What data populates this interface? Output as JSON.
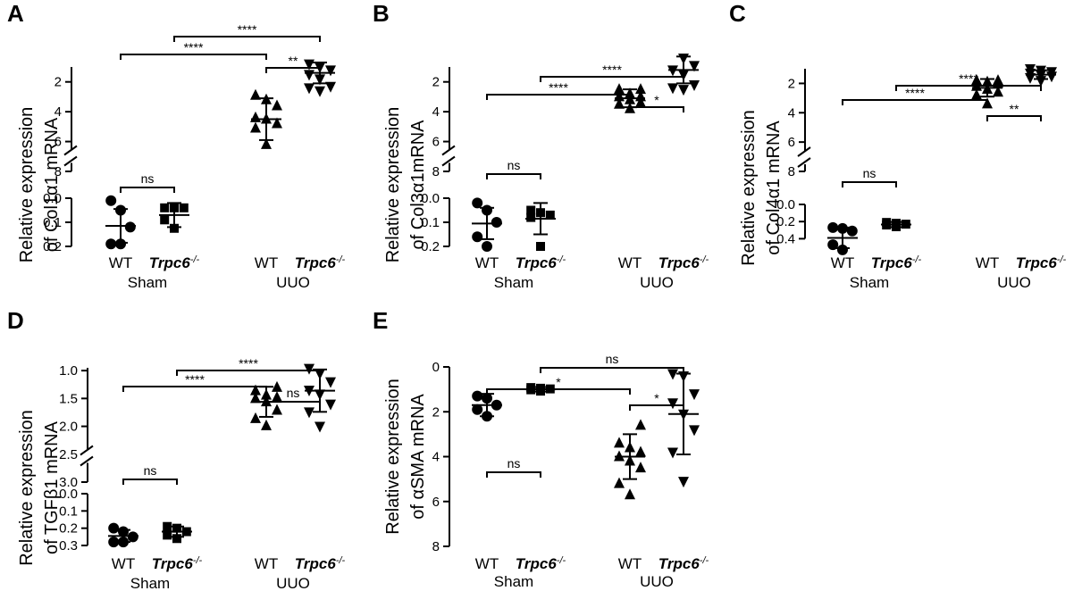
{
  "chart_data": [
    {
      "type": "scatter",
      "panel_label": "A",
      "ylabel_line1": "Relative expression",
      "ylabel_line2": "of Col1α1 mRNA",
      "y_segments": [
        {
          "range": [
            0,
            0.2
          ],
          "ticks": [
            0.0,
            0.1,
            0.2
          ],
          "tick_labels": [
            "0.0",
            "0.1",
            "0.2"
          ]
        },
        {
          "range": [
            1,
            8
          ],
          "ticks": [
            2,
            4,
            6,
            8
          ],
          "tick_labels": [
            "2",
            "4",
            "6",
            "8"
          ]
        }
      ],
      "group_labels": [
        "Sham",
        "UUO"
      ],
      "categories": [
        {
          "label": "WT",
          "label_sup": "",
          "italic": false,
          "marker": "circle",
          "mean": 0.115,
          "sd": 0.07,
          "values": [
            0.19,
            0.19,
            0.12,
            0.05,
            0.01
          ]
        },
        {
          "label": "Trpc6",
          "label_sup": "-/-",
          "italic": true,
          "marker": "square",
          "mean": 0.07,
          "sd": 0.05,
          "values": [
            0.125,
            0.09,
            0.04,
            0.04,
            0.04
          ]
        },
        {
          "label": "WT",
          "label_sup": "",
          "italic": false,
          "marker": "triangle-up",
          "mean": 4.5,
          "sd": 1.4,
          "values": [
            6.2,
            5.1,
            4.8,
            4.5,
            4.4,
            3.6,
            3.2,
            2.9
          ]
        },
        {
          "label": "Trpc6",
          "label_sup": "-/-",
          "italic": true,
          "marker": "triangle-down",
          "mean": 1.4,
          "sd": 0.7,
          "values": [
            2.6,
            2.4,
            2.3,
            1.8,
            1.5,
            1.2,
            1.0,
            0.8
          ]
        }
      ],
      "comparisons": [
        {
          "from": 0,
          "to": 1,
          "label": "ns"
        },
        {
          "from": 2,
          "to": 3,
          "label": "**"
        },
        {
          "from": 0,
          "to": 2,
          "label": "****"
        },
        {
          "from": 1,
          "to": 3,
          "label": "****"
        }
      ]
    },
    {
      "type": "scatter",
      "panel_label": "B",
      "ylabel_line1": "Relative expression",
      "ylabel_line2": "of Col3α1mRNA",
      "y_segments": [
        {
          "range": [
            0,
            0.2
          ],
          "ticks": [
            0.0,
            0.1,
            0.2
          ],
          "tick_labels": [
            "0.0",
            "0.1",
            "0.2"
          ]
        },
        {
          "range": [
            1,
            8
          ],
          "ticks": [
            2,
            4,
            6,
            8
          ],
          "tick_labels": [
            "2",
            "4",
            "6",
            "8"
          ]
        }
      ],
      "group_labels": [
        "Sham",
        "UUO"
      ],
      "categories": [
        {
          "label": "WT",
          "label_sup": "",
          "italic": false,
          "marker": "circle",
          "mean": 0.105,
          "sd": 0.065,
          "values": [
            0.2,
            0.16,
            0.1,
            0.05,
            0.02
          ]
        },
        {
          "label": "Trpc6",
          "label_sup": "-/-",
          "italic": true,
          "marker": "square",
          "mean": 0.085,
          "sd": 0.065,
          "values": [
            0.2,
            0.08,
            0.07,
            0.06,
            0.05
          ]
        },
        {
          "label": "WT",
          "label_sup": "",
          "italic": false,
          "marker": "triangle-up",
          "mean": 3.1,
          "sd": 0.6,
          "values": [
            3.8,
            3.5,
            3.4,
            3.2,
            3.0,
            3.0,
            2.8,
            2.5,
            2.5
          ]
        },
        {
          "label": "Trpc6",
          "label_sup": "-/-",
          "italic": true,
          "marker": "triangle-down",
          "mean": 1.2,
          "sd": 0.9,
          "values": [
            2.5,
            2.4,
            2.2,
            1.5,
            1.2,
            0.9,
            0.4
          ]
        }
      ],
      "comparisons": [
        {
          "from": 0,
          "to": 1,
          "label": "ns"
        },
        {
          "from": 2,
          "to": 3,
          "label": "*"
        },
        {
          "from": 0,
          "to": 2,
          "label": "****"
        },
        {
          "from": 1,
          "to": 3,
          "label": "****"
        }
      ]
    },
    {
      "type": "scatter",
      "panel_label": "C",
      "ylabel_line1": "Relative expression",
      "ylabel_line2": "of Col4α1 mRNA",
      "y_segments": [
        {
          "range": [
            0,
            0.5
          ],
          "ticks": [
            0.0,
            0.2,
            0.4
          ],
          "tick_labels": [
            "0.0",
            "0.2",
            "0.4"
          ]
        },
        {
          "range": [
            1,
            8
          ],
          "ticks": [
            2,
            4,
            6,
            8
          ],
          "tick_labels": [
            "2",
            "4",
            "6",
            "8"
          ]
        }
      ],
      "group_labels": [
        "Sham",
        "UUO"
      ],
      "categories": [
        {
          "label": "WT",
          "label_sup": "",
          "italic": false,
          "marker": "circle",
          "mean": 0.39,
          "sd": 0.12,
          "values": [
            0.53,
            0.47,
            0.31,
            0.28,
            0.27
          ]
        },
        {
          "label": "Trpc6",
          "label_sup": "-/-",
          "italic": true,
          "marker": "square",
          "mean": 0.235,
          "sd": 0.03,
          "values": [
            0.26,
            0.24,
            0.23,
            0.22,
            0.21
          ]
        },
        {
          "label": "WT",
          "label_sup": "",
          "italic": false,
          "marker": "triangle-up",
          "mean": 2.3,
          "sd": 0.6,
          "values": [
            3.4,
            2.8,
            2.6,
            2.4,
            2.2,
            2.0,
            1.9,
            1.8,
            1.8
          ]
        },
        {
          "label": "Trpc6",
          "label_sup": "-/-",
          "italic": true,
          "marker": "triangle-down",
          "mean": 1.4,
          "sd": 0.3,
          "values": [
            1.8,
            1.6,
            1.5,
            1.4,
            1.3,
            1.2,
            1.1,
            1.0
          ]
        }
      ],
      "comparisons": [
        {
          "from": 0,
          "to": 1,
          "label": "ns"
        },
        {
          "from": 2,
          "to": 3,
          "label": "**"
        },
        {
          "from": 0,
          "to": 2,
          "label": "****"
        },
        {
          "from": 1,
          "to": 3,
          "label": "****"
        }
      ]
    },
    {
      "type": "scatter",
      "panel_label": "D",
      "ylabel_line1": "Relative expression",
      "ylabel_line2": "of TGFβ1 mRNA",
      "y_segments": [
        {
          "range": [
            0,
            0.3
          ],
          "ticks": [
            0.0,
            0.1,
            0.2,
            0.3
          ],
          "tick_labels": [
            "0.0",
            "0.1",
            "0.2",
            "0.3"
          ]
        },
        {
          "range": [
            0.95,
            3.0
          ],
          "ticks": [
            1.0,
            1.5,
            2.0,
            2.5,
            3.0
          ],
          "tick_labels": [
            "1.0",
            "1.5",
            "2.0",
            "2.5",
            "3.0"
          ]
        }
      ],
      "group_labels": [
        "Sham",
        "UUO"
      ],
      "categories": [
        {
          "label": "WT",
          "label_sup": "",
          "italic": false,
          "marker": "circle",
          "mean": 0.245,
          "sd": 0.035,
          "values": [
            0.28,
            0.28,
            0.25,
            0.22,
            0.2
          ]
        },
        {
          "label": "Trpc6",
          "label_sup": "-/-",
          "italic": true,
          "marker": "square",
          "mean": 0.22,
          "sd": 0.03,
          "values": [
            0.26,
            0.24,
            0.22,
            0.2,
            0.19
          ]
        },
        {
          "label": "WT",
          "label_sup": "",
          "italic": false,
          "marker": "triangle-up",
          "mean": 1.56,
          "sd": 0.27,
          "values": [
            1.99,
            1.86,
            1.71,
            1.56,
            1.5,
            1.48,
            1.44,
            1.36,
            1.3
          ]
        },
        {
          "label": "Trpc6",
          "label_sup": "-/-",
          "italic": true,
          "marker": "triangle-down",
          "mean": 1.36,
          "sd": 0.38,
          "values": [
            2.0,
            1.74,
            1.6,
            1.42,
            1.35,
            1.2,
            1.05,
            0.96
          ]
        }
      ],
      "comparisons": [
        {
          "from": 0,
          "to": 1,
          "label": "ns"
        },
        {
          "from": 2,
          "to": 3,
          "label": "ns"
        },
        {
          "from": 0,
          "to": 2,
          "label": "****"
        },
        {
          "from": 1,
          "to": 3,
          "label": "****"
        }
      ]
    },
    {
      "type": "scatter",
      "panel_label": "E",
      "ylabel_line1": "Relative expression",
      "ylabel_line2": "of αSMA mRNA",
      "y_segments": [
        {
          "range": [
            0,
            8
          ],
          "ticks": [
            0,
            2,
            4,
            6,
            8
          ],
          "tick_labels": [
            "0",
            "2",
            "4",
            "6",
            "8"
          ]
        }
      ],
      "group_labels": [
        "Sham",
        "UUO"
      ],
      "categories": [
        {
          "label": "WT",
          "label_sup": "",
          "italic": false,
          "marker": "circle",
          "mean": 1.7,
          "sd": 0.5,
          "values": [
            2.2,
            1.9,
            1.7,
            1.4,
            1.3
          ]
        },
        {
          "label": "Trpc6",
          "label_sup": "-/-",
          "italic": true,
          "marker": "square",
          "mean": 1.0,
          "sd": 0.1,
          "values": [
            1.08,
            1.02,
            0.98,
            0.95,
            0.92
          ]
        },
        {
          "label": "WT",
          "label_sup": "",
          "italic": false,
          "marker": "triangle-up",
          "mean": 4.0,
          "sd": 1.0,
          "values": [
            5.7,
            5.2,
            4.5,
            4.2,
            4.0,
            3.8,
            3.6,
            3.4,
            2.6
          ]
        },
        {
          "label": "Trpc6",
          "label_sup": "-/-",
          "italic": true,
          "marker": "triangle-down",
          "mean": 2.1,
          "sd": 1.8,
          "values": [
            5.1,
            3.8,
            2.8,
            2.1,
            1.6,
            1.2,
            0.4,
            0.3
          ]
        }
      ],
      "comparisons": [
        {
          "from": 0,
          "to": 1,
          "label": "ns"
        },
        {
          "from": 2,
          "to": 3,
          "label": "*"
        },
        {
          "from": 0,
          "to": 2,
          "label": "*"
        },
        {
          "from": 1,
          "to": 3,
          "label": "ns"
        }
      ]
    }
  ]
}
